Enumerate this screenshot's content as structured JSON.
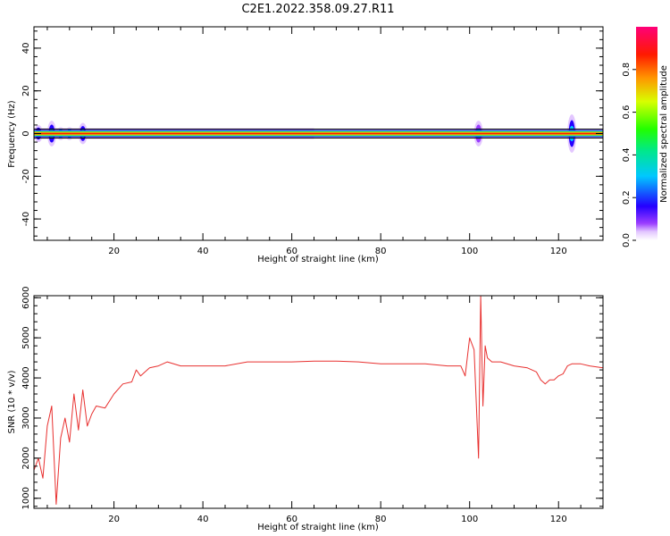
{
  "title": "C2E1.2022.358.09.27.R11",
  "colors": {
    "snr_line": "#e8302f",
    "frame": "#000000",
    "background": "#ffffff"
  },
  "colorbar": {
    "label": "Normalized spectral amplitude",
    "ticks": [
      "0.0",
      "0.2",
      "0.4",
      "0.6",
      "0.8"
    ],
    "range": [
      0.0,
      1.0
    ],
    "colormap": "rainbow (violet → blue → cyan → green → yellow → orange → red → magenta)"
  },
  "chart_data": [
    {
      "type": "heatmap",
      "xlabel": "Height of straight line (km)",
      "ylabel": "Frequency (Hz)",
      "xlim": [
        2,
        130
      ],
      "ylim": [
        -50,
        50
      ],
      "x_ticks": [
        "20",
        "40",
        "60",
        "80",
        "100",
        "120"
      ],
      "y_ticks": [
        "-40",
        "-20",
        "0",
        "20",
        "40"
      ],
      "ridge": {
        "frequency_hz": 0,
        "x_range": [
          2,
          130
        ],
        "amplitude": 0.95
      },
      "blobs": [
        {
          "x": 3,
          "halfwidth_hz": 4,
          "amplitude": 0.5
        },
        {
          "x": 6,
          "halfwidth_hz": 6,
          "amplitude": 0.45
        },
        {
          "x": 8,
          "halfwidth_hz": 3,
          "amplitude": 0.85
        },
        {
          "x": 10,
          "halfwidth_hz": 3,
          "amplitude": 0.85
        },
        {
          "x": 13,
          "halfwidth_hz": 5,
          "amplitude": 0.45
        },
        {
          "x": 102,
          "halfwidth_hz": 6,
          "amplitude": 0.35
        },
        {
          "x": 123,
          "halfwidth_hz": 9,
          "amplitude": 0.4
        }
      ],
      "faint_band": {
        "x_range": [
          2,
          65
        ],
        "halfwidth_hz": 2.5,
        "amplitude": 0.12
      },
      "grid": false
    },
    {
      "type": "line",
      "xlabel": "Height of straight line (km)",
      "ylabel": "SNR (10 * v/v)",
      "xlim": [
        2,
        130
      ],
      "ylim": [
        750,
        6050
      ],
      "x_ticks": [
        "20",
        "40",
        "60",
        "80",
        "100",
        "120"
      ],
      "y_ticks": [
        "1000",
        "2000",
        "3000",
        "4000",
        "5000",
        "6000"
      ],
      "series": [
        {
          "x": [
            2,
            3,
            4,
            5,
            6,
            7,
            8,
            9,
            10,
            11,
            12,
            13,
            14,
            15,
            16,
            18,
            20,
            22,
            24,
            25,
            26,
            28,
            30,
            32,
            35,
            40,
            45,
            50,
            55,
            60,
            65,
            70,
            75,
            80,
            85,
            90,
            95,
            98,
            99,
            100,
            101,
            102,
            102.5,
            103,
            103.5,
            104,
            105,
            107,
            110,
            113,
            115,
            116,
            117,
            118,
            119,
            120,
            121,
            122,
            123,
            125,
            127,
            130
          ],
          "y": [
            1700,
            2000,
            1500,
            2800,
            3300,
            850,
            2500,
            3000,
            2400,
            3600,
            2700,
            3700,
            2800,
            3100,
            3300,
            3250,
            3600,
            3850,
            3900,
            4200,
            4050,
            4250,
            4300,
            4400,
            4300,
            4300,
            4300,
            4400,
            4400,
            4400,
            4420,
            4420,
            4400,
            4350,
            4350,
            4350,
            4300,
            4300,
            4050,
            5000,
            4700,
            2000,
            6050,
            3300,
            4800,
            4500,
            4400,
            4400,
            4300,
            4250,
            4150,
            3950,
            3850,
            3950,
            3950,
            4050,
            4100,
            4300,
            4350,
            4350,
            4300,
            4250
          ]
        }
      ],
      "grid": false
    }
  ]
}
